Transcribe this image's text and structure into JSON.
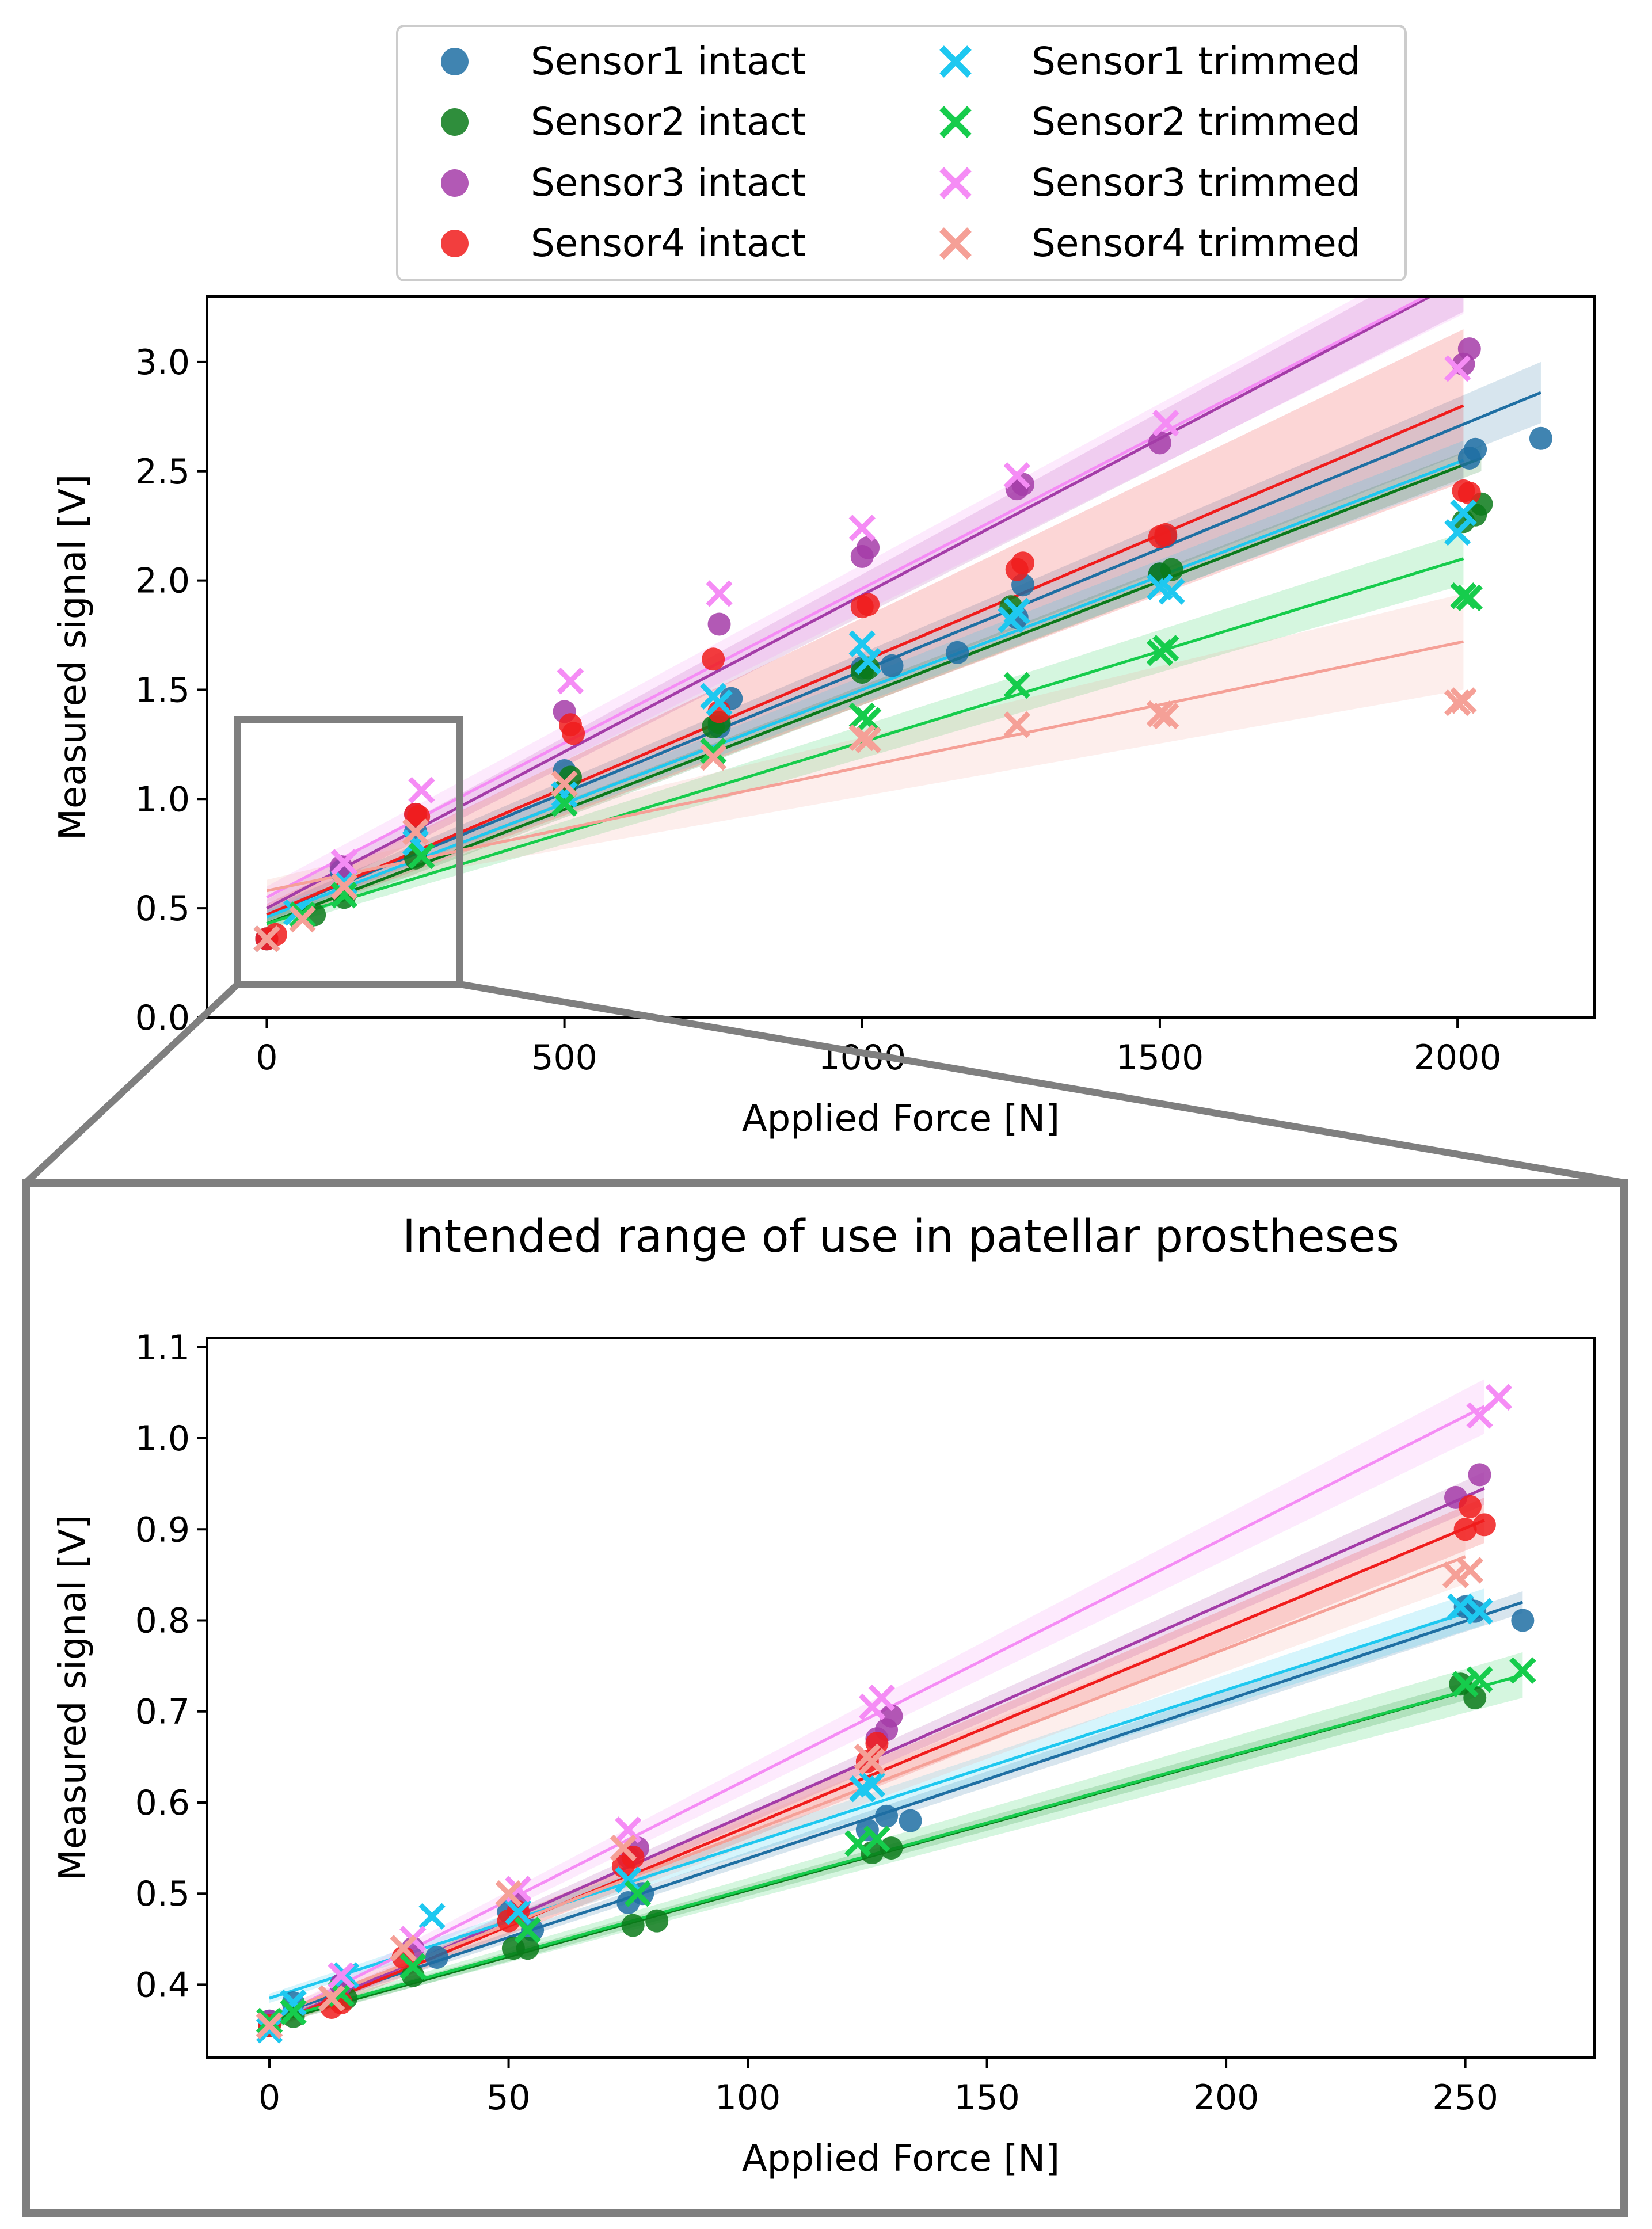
{
  "colors": {
    "s1_intact": "#1f6fa3",
    "s2_intact": "#0a7a1a",
    "s3_intact": "#a43ca8",
    "s4_intact": "#f01c1c",
    "s1_trimmed": "#1ec8f0",
    "s2_trimmed": "#16cc4c",
    "s3_trimmed": "#f58cf5",
    "s4_trimmed": "#f5a097",
    "frame": "#7f7f7f"
  },
  "legend": {
    "items": [
      {
        "key": "s1_intact",
        "label": "Sensor1 intact",
        "marker": "circle"
      },
      {
        "key": "s2_intact",
        "label": "Sensor2 intact",
        "marker": "circle"
      },
      {
        "key": "s3_intact",
        "label": "Sensor3 intact",
        "marker": "circle"
      },
      {
        "key": "s4_intact",
        "label": "Sensor4 intact",
        "marker": "circle"
      },
      {
        "key": "s1_trimmed",
        "label": "Sensor1 trimmed",
        "marker": "cross"
      },
      {
        "key": "s2_trimmed",
        "label": "Sensor2 trimmed",
        "marker": "cross"
      },
      {
        "key": "s3_trimmed",
        "label": "Sensor3 trimmed",
        "marker": "cross"
      },
      {
        "key": "s4_trimmed",
        "label": "Sensor4 trimmed",
        "marker": "cross"
      }
    ]
  },
  "chart_data": [
    {
      "type": "scatter",
      "title": "",
      "xlabel": "Applied Force [N]",
      "ylabel": "Measured signal [V]",
      "xlim": [
        -100,
        2230
      ],
      "ylim": [
        0,
        3.3
      ],
      "xticks": [
        0,
        500,
        1000,
        1500,
        2000
      ],
      "yticks": [
        0.0,
        0.5,
        1.0,
        1.5,
        2.0,
        2.5,
        3.0
      ],
      "xtick_labels": [
        "0",
        "500",
        "1000",
        "1500",
        "2000"
      ],
      "ytick_labels": [
        "0.0",
        "0.5",
        "1.0",
        "1.5",
        "2.0",
        "2.5",
        "3.0"
      ],
      "grid": false,
      "legend_position": "top-center, outside",
      "series": [
        {
          "name": "Sensor1 intact",
          "key": "s1_intact",
          "marker": "circle",
          "x": [
            0,
            125,
            250,
            500,
            760,
            780,
            1000,
            1050,
            1160,
            1260,
            1270,
            1500,
            1510,
            2020,
            2030,
            2140
          ],
          "y": [
            0.36,
            0.67,
            0.85,
            1.13,
            1.33,
            1.46,
            1.6,
            1.61,
            1.67,
            1.83,
            1.98,
            2.03,
            2.2,
            2.56,
            2.6,
            2.65
          ],
          "fit": {
            "x": [
              0,
              2140
            ],
            "y": [
              0.47,
              2.86
            ],
            "band": [
              0.03,
              0.14
            ]
          }
        },
        {
          "name": "Sensor2 intact",
          "key": "s2_intact",
          "marker": "circle",
          "x": [
            0,
            80,
            130,
            250,
            500,
            510,
            750,
            760,
            1000,
            1010,
            1250,
            1500,
            1520,
            2010,
            2030,
            2040
          ],
          "y": [
            0.36,
            0.47,
            0.55,
            0.73,
            1.04,
            1.1,
            1.33,
            1.35,
            1.58,
            1.6,
            1.88,
            2.03,
            2.05,
            2.27,
            2.3,
            2.35
          ],
          "fit": {
            "x": [
              0,
              2040
            ],
            "y": [
              0.43,
              2.56
            ],
            "band": [
              0.03,
              0.06
            ]
          }
        },
        {
          "name": "Sensor3 intact",
          "key": "s3_intact",
          "marker": "circle",
          "x": [
            0,
            125,
            250,
            500,
            760,
            1000,
            1010,
            1260,
            1270,
            1500,
            2010,
            2020
          ],
          "y": [
            0.36,
            0.69,
            0.93,
            1.4,
            1.8,
            2.11,
            2.15,
            2.42,
            2.44,
            2.63,
            2.99,
            3.06
          ],
          "fit": {
            "x": [
              0,
              2010
            ],
            "y": [
              0.5,
              3.38
            ],
            "band": [
              0.04,
              0.15
            ]
          }
        },
        {
          "name": "Sensor4 intact",
          "key": "s4_intact",
          "marker": "circle",
          "x": [
            0,
            15,
            250,
            255,
            510,
            515,
            750,
            760,
            1000,
            1010,
            1260,
            1270,
            1500,
            1510,
            2010,
            2020
          ],
          "y": [
            0.36,
            0.38,
            0.93,
            0.92,
            1.34,
            1.3,
            1.64,
            1.4,
            1.88,
            1.89,
            2.05,
            2.08,
            2.2,
            2.21,
            2.41,
            2.4
          ],
          "fit": {
            "x": [
              0,
              2010
            ],
            "y": [
              0.47,
              2.8
            ],
            "band": [
              0.05,
              0.35
            ]
          }
        },
        {
          "name": "Sensor1 trimmed",
          "key": "s1_trimmed",
          "marker": "cross",
          "x": [
            0,
            50,
            130,
            250,
            500,
            750,
            760,
            1000,
            1010,
            1250,
            1260,
            1500,
            1520,
            2000,
            2010
          ],
          "y": [
            0.36,
            0.48,
            0.62,
            0.8,
            1.02,
            1.47,
            1.44,
            1.71,
            1.63,
            1.82,
            1.86,
            1.97,
            1.95,
            2.22,
            2.31
          ],
          "fit": {
            "x": [
              0,
              2010
            ],
            "y": [
              0.46,
              2.55
            ],
            "band": [
              0.03,
              0.09
            ]
          }
        },
        {
          "name": "Sensor2 trimmed",
          "key": "s2_trimmed",
          "marker": "cross",
          "x": [
            0,
            60,
            130,
            260,
            500,
            750,
            1000,
            1010,
            1260,
            1500,
            1510,
            2010,
            2020
          ],
          "y": [
            0.36,
            0.47,
            0.56,
            0.74,
            0.98,
            1.22,
            1.38,
            1.36,
            1.52,
            1.67,
            1.69,
            1.93,
            1.92
          ],
          "fit": {
            "x": [
              0,
              2010
            ],
            "y": [
              0.43,
              2.1
            ],
            "band": [
              0.03,
              0.12
            ]
          }
        },
        {
          "name": "Sensor3 trimmed",
          "key": "s3_trimmed",
          "marker": "cross",
          "x": [
            0,
            130,
            260,
            510,
            760,
            1000,
            1260,
            1510,
            2000
          ],
          "y": [
            0.36,
            0.71,
            1.04,
            1.54,
            1.94,
            2.24,
            2.48,
            2.72,
            2.97
          ],
          "fit": {
            "x": [
              0,
              2010
            ],
            "y": [
              0.55,
              3.39
            ],
            "band": [
              0.05,
              0.17
            ]
          }
        },
        {
          "name": "Sensor4 trimmed",
          "key": "s4_trimmed",
          "marker": "cross",
          "x": [
            0,
            60,
            130,
            250,
            500,
            750,
            1000,
            1010,
            1260,
            1500,
            1510,
            2000,
            2010
          ],
          "y": [
            0.36,
            0.45,
            0.6,
            0.85,
            1.07,
            1.19,
            1.28,
            1.27,
            1.34,
            1.39,
            1.38,
            1.44,
            1.45
          ],
          "fit": {
            "x": [
              0,
              2010
            ],
            "y": [
              0.58,
              1.72
            ],
            "band": [
              0.05,
              0.22
            ]
          }
        }
      ]
    },
    {
      "type": "scatter",
      "title": "Intended range of use in patellar prostheses",
      "xlabel": "Applied Force [N]",
      "ylabel": "Measured signal [V]",
      "xlim": [
        -13,
        277
      ],
      "ylim": [
        0.32,
        1.11
      ],
      "xticks": [
        0,
        50,
        100,
        150,
        200,
        250
      ],
      "yticks": [
        0.4,
        0.5,
        0.6,
        0.7,
        0.8,
        0.9,
        1.0,
        1.1
      ],
      "xtick_labels": [
        "0",
        "50",
        "100",
        "150",
        "200",
        "250"
      ],
      "ytick_labels": [
        "0.4",
        "0.5",
        "0.6",
        "0.7",
        "0.8",
        "0.9",
        "1.0",
        "1.1"
      ],
      "grid": false,
      "series": [
        {
          "name": "Sensor1 intact",
          "key": "s1_intact",
          "marker": "circle",
          "x": [
            0,
            5,
            15,
            35,
            50,
            55,
            75,
            78,
            125,
            129,
            134,
            250,
            252,
            262
          ],
          "y": [
            0.36,
            0.38,
            0.4,
            0.43,
            0.48,
            0.46,
            0.49,
            0.5,
            0.57,
            0.585,
            0.58,
            0.815,
            0.81,
            0.8
          ],
          "fit": {
            "x": [
              0,
              262
            ],
            "y": [
              0.365,
              0.82
            ],
            "band": [
              0.004,
              0.012
            ]
          }
        },
        {
          "name": "Sensor2 intact",
          "key": "s2_intact",
          "marker": "circle",
          "x": [
            0,
            5,
            16,
            30,
            51,
            54,
            76,
            81,
            126,
            130,
            249,
            252
          ],
          "y": [
            0.355,
            0.365,
            0.385,
            0.41,
            0.44,
            0.44,
            0.465,
            0.47,
            0.545,
            0.55,
            0.73,
            0.715
          ],
          "fit": {
            "x": [
              0,
              252
            ],
            "y": [
              0.358,
              0.725
            ],
            "band": [
              0.004,
              0.01
            ]
          }
        },
        {
          "name": "Sensor3 intact",
          "key": "s3_intact",
          "marker": "circle",
          "x": [
            0,
            15,
            30,
            52,
            75,
            77,
            127,
            129,
            130,
            248,
            253
          ],
          "y": [
            0.36,
            0.4,
            0.44,
            0.49,
            0.54,
            0.55,
            0.67,
            0.68,
            0.695,
            0.935,
            0.96
          ],
          "fit": {
            "x": [
              0,
              254
            ],
            "y": [
              0.355,
              0.945
            ],
            "band": [
              0.005,
              0.018
            ]
          }
        },
        {
          "name": "Sensor4 intact",
          "key": "s4_intact",
          "marker": "circle",
          "x": [
            0,
            13,
            15,
            28,
            50,
            52,
            74,
            76,
            125,
            127,
            250,
            251,
            254
          ],
          "y": [
            0.355,
            0.375,
            0.38,
            0.43,
            0.47,
            0.48,
            0.53,
            0.54,
            0.645,
            0.665,
            0.9,
            0.925,
            0.905
          ],
          "fit": {
            "x": [
              0,
              254
            ],
            "y": [
              0.355,
              0.91
            ],
            "band": [
              0.006,
              0.025
            ]
          }
        },
        {
          "name": "Sensor1 trimmed",
          "key": "s1_trimmed",
          "marker": "cross",
          "x": [
            0,
            5,
            16,
            34,
            52,
            75,
            124,
            126,
            249,
            253
          ],
          "y": [
            0.35,
            0.38,
            0.41,
            0.475,
            0.48,
            0.515,
            0.615,
            0.62,
            0.815,
            0.81
          ],
          "fit": {
            "x": [
              0,
              254
            ],
            "y": [
              0.385,
              0.815
            ],
            "band": [
              0.005,
              0.02
            ]
          }
        },
        {
          "name": "Sensor2 trimmed",
          "key": "s2_trimmed",
          "marker": "cross",
          "x": [
            0,
            5,
            15,
            30,
            54,
            77,
            123,
            127,
            250,
            253,
            262
          ],
          "y": [
            0.36,
            0.37,
            0.39,
            0.42,
            0.46,
            0.5,
            0.555,
            0.56,
            0.73,
            0.735,
            0.745
          ],
          "fit": {
            "x": [
              0,
              262
            ],
            "y": [
              0.36,
              0.74
            ],
            "band": [
              0.004,
              0.025
            ]
          }
        },
        {
          "name": "Sensor3 trimmed",
          "key": "s3_trimmed",
          "marker": "cross",
          "x": [
            0,
            15,
            30,
            52,
            75,
            126,
            128,
            253,
            257
          ],
          "y": [
            0.355,
            0.41,
            0.45,
            0.505,
            0.57,
            0.705,
            0.715,
            1.025,
            1.045
          ],
          "fit": {
            "x": [
              0,
              254
            ],
            "y": [
              0.36,
              1.035
            ],
            "band": [
              0.005,
              0.03
            ]
          }
        },
        {
          "name": "Sensor4 trimmed",
          "key": "s4_trimmed",
          "marker": "cross",
          "x": [
            0,
            13,
            28,
            50,
            74,
            125,
            126,
            248,
            251
          ],
          "y": [
            0.355,
            0.385,
            0.44,
            0.5,
            0.55,
            0.65,
            0.645,
            0.85,
            0.855
          ],
          "fit": {
            "x": [
              0,
              250
            ],
            "y": [
              0.365,
              0.87
            ],
            "band": [
              0.005,
              0.03
            ]
          }
        }
      ]
    }
  ]
}
